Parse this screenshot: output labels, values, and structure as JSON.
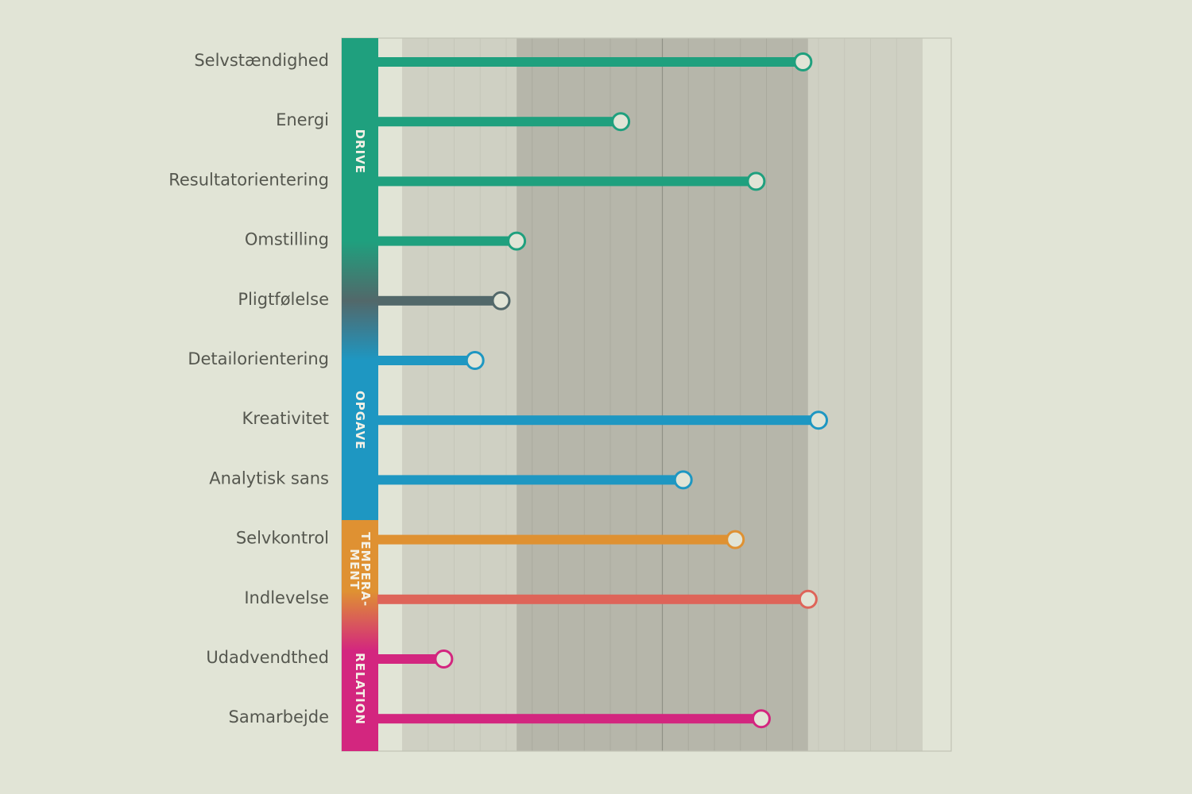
{
  "chart_data": {
    "type": "lollipop",
    "orientation": "horizontal",
    "xlim": [
      0,
      10
    ],
    "bands": [
      {
        "from": 0,
        "to": 2.2,
        "color": "#cfd0c3"
      },
      {
        "from": 2.2,
        "to": 7.8,
        "color": "#b6b6aa"
      },
      {
        "from": 7.8,
        "to": 10,
        "color": "#cfd0c3"
      }
    ],
    "categories": [
      "Selvstændighed",
      "Energi",
      "Resultatorientering",
      "Omstilling",
      "Pligtfølelse",
      "Detailorientering",
      "Kreativitet",
      "Analytisk sans",
      "Selvkontrol",
      "Indlevelse",
      "Udadvendthed",
      "Samarbejde"
    ],
    "values": [
      7.7,
      4.2,
      6.8,
      2.2,
      1.9,
      1.4,
      8.0,
      5.4,
      6.4,
      7.8,
      0.8,
      6.9
    ],
    "colors": [
      "#1fa07e",
      "#1fa07e",
      "#1fa07e",
      "#1fa07e",
      "#52686a",
      "#1e97c2",
      "#1e97c2",
      "#1e97c2",
      "#df9132",
      "#de6459",
      "#d3267f",
      "#d3267f"
    ],
    "groups": [
      {
        "label": "DRIVE",
        "lines": [
          "DRIVE"
        ],
        "from": 0,
        "to": 3,
        "color": "#1fa07e"
      },
      {
        "label": "OPGAVE",
        "lines": [
          "OPGAVE"
        ],
        "from": 5,
        "to": 7,
        "color": "#1e97c2"
      },
      {
        "label": "TEMPERA- MENT",
        "lines": [
          "TEMPERA-",
          "MENT"
        ],
        "from": 8,
        "to": 9,
        "color": "#df9132"
      },
      {
        "label": "RELATION",
        "lines": [
          "RELATION"
        ],
        "from": 10,
        "to": 11,
        "color": "#d3267f"
      }
    ],
    "title": "",
    "xlabel": "",
    "ylabel": "",
    "grid": true
  }
}
